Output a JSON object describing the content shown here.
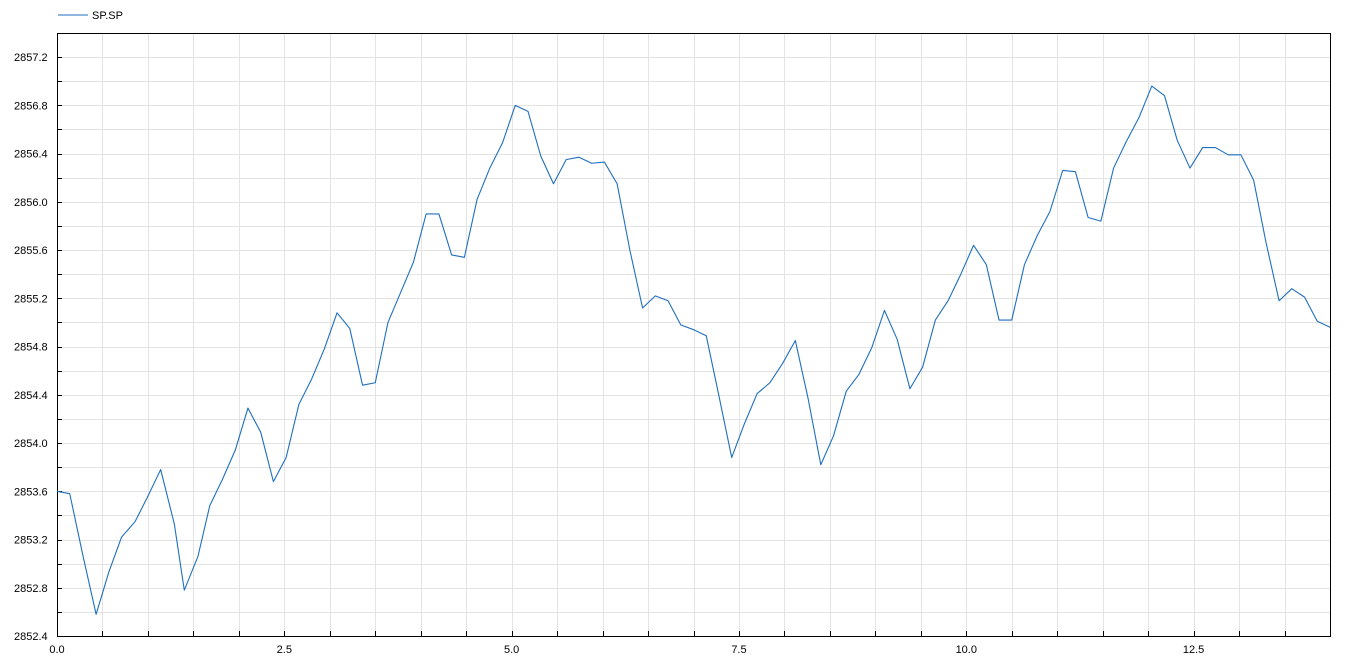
{
  "chart_data": {
    "type": "line",
    "title": "",
    "xlabel": "",
    "ylabel": "",
    "xlim": [
      0,
      14
    ],
    "ylim": [
      2852.4,
      2857.4
    ],
    "grid": true,
    "legend": "top-left",
    "x_ticks": [
      0,
      2.5,
      5,
      7.5,
      10,
      12.5
    ],
    "x_tick_labels": [
      "0.0",
      "2.5",
      "5.0",
      "7.5",
      "10.0",
      "12.5"
    ],
    "x_minor_step": 0.5,
    "y_ticks": [
      2852.4,
      2852.8,
      2853.2,
      2853.6,
      2854.0,
      2854.4,
      2854.8,
      2855.2,
      2855.6,
      2856.0,
      2856.4,
      2856.8,
      2857.2
    ],
    "y_tick_labels": [
      "2852.4",
      "2852.8",
      "2853.2",
      "2853.6",
      "2854.0",
      "2854.4",
      "2854.8",
      "2855.2",
      "2855.6",
      "2856.0",
      "2856.4",
      "2856.8",
      "2857.2"
    ],
    "y_minor_step": 0.2,
    "series": [
      {
        "name": "SP.SP",
        "color": "#1f6fbf",
        "x": [
          0.0,
          0.14,
          0.29,
          0.43,
          0.57,
          0.71,
          0.86,
          1.0,
          1.14,
          1.29,
          1.4,
          1.55,
          1.68,
          1.82,
          1.96,
          2.1,
          2.24,
          2.38,
          2.52,
          2.66,
          2.8,
          2.94,
          3.08,
          3.22,
          3.36,
          3.5,
          3.64,
          3.78,
          3.92,
          4.06,
          4.2,
          4.34,
          4.48,
          4.62,
          4.76,
          4.9,
          5.04,
          5.18,
          5.32,
          5.46,
          5.6,
          5.74,
          5.88,
          6.02,
          6.16,
          6.3,
          6.44,
          6.58,
          6.72,
          6.86,
          7.0,
          7.14,
          7.28,
          7.42,
          7.56,
          7.7,
          7.84,
          7.98,
          8.12,
          8.26,
          8.4,
          8.54,
          8.68,
          8.82,
          8.96,
          9.1,
          9.24,
          9.38,
          9.52,
          9.66,
          9.8,
          9.94,
          10.08,
          10.22,
          10.36,
          10.5,
          10.64,
          10.78,
          10.92,
          11.06,
          11.2,
          11.34,
          11.48,
          11.62,
          11.76,
          11.9,
          12.04,
          12.18,
          12.32,
          12.46,
          12.6,
          12.74,
          12.88,
          13.02,
          13.16,
          13.3,
          13.44,
          13.58,
          13.72,
          13.86,
          14.0
        ],
        "values": [
          2853.6,
          2853.58,
          2853.05,
          2852.58,
          2852.93,
          2853.22,
          2853.35,
          2853.56,
          2853.78,
          2853.33,
          2852.78,
          2853.06,
          2853.48,
          2853.7,
          2853.94,
          2854.29,
          2854.09,
          2853.68,
          2853.88,
          2854.32,
          2854.53,
          2854.78,
          2855.08,
          2854.95,
          2854.48,
          2854.5,
          2855.0,
          2855.25,
          2855.5,
          2855.9,
          2855.9,
          2855.56,
          2855.54,
          2856.02,
          2856.28,
          2856.49,
          2856.8,
          2856.75,
          2856.38,
          2856.15,
          2856.35,
          2856.37,
          2856.32,
          2856.33,
          2856.15,
          2855.6,
          2855.12,
          2855.22,
          2855.18,
          2854.98,
          2854.94,
          2854.89,
          2854.39,
          2853.88,
          2854.16,
          2854.41,
          2854.5,
          2854.66,
          2854.85,
          2854.37,
          2853.82,
          2854.06,
          2854.43,
          2854.57,
          2854.79,
          2855.1,
          2854.86,
          2854.45,
          2854.63,
          2855.02,
          2855.18,
          2855.4,
          2855.64,
          2855.48,
          2855.02,
          2855.02,
          2855.48,
          2855.72,
          2855.92,
          2856.26,
          2856.25,
          2855.87,
          2855.84,
          2856.28,
          2856.5,
          2856.7,
          2856.96,
          2856.88,
          2856.51,
          2856.28,
          2856.45,
          2856.45,
          2856.39,
          2856.39,
          2856.18,
          2855.65,
          2855.18,
          2855.28,
          2855.21,
          2855.01,
          2854.96
        ]
      }
    ]
  }
}
